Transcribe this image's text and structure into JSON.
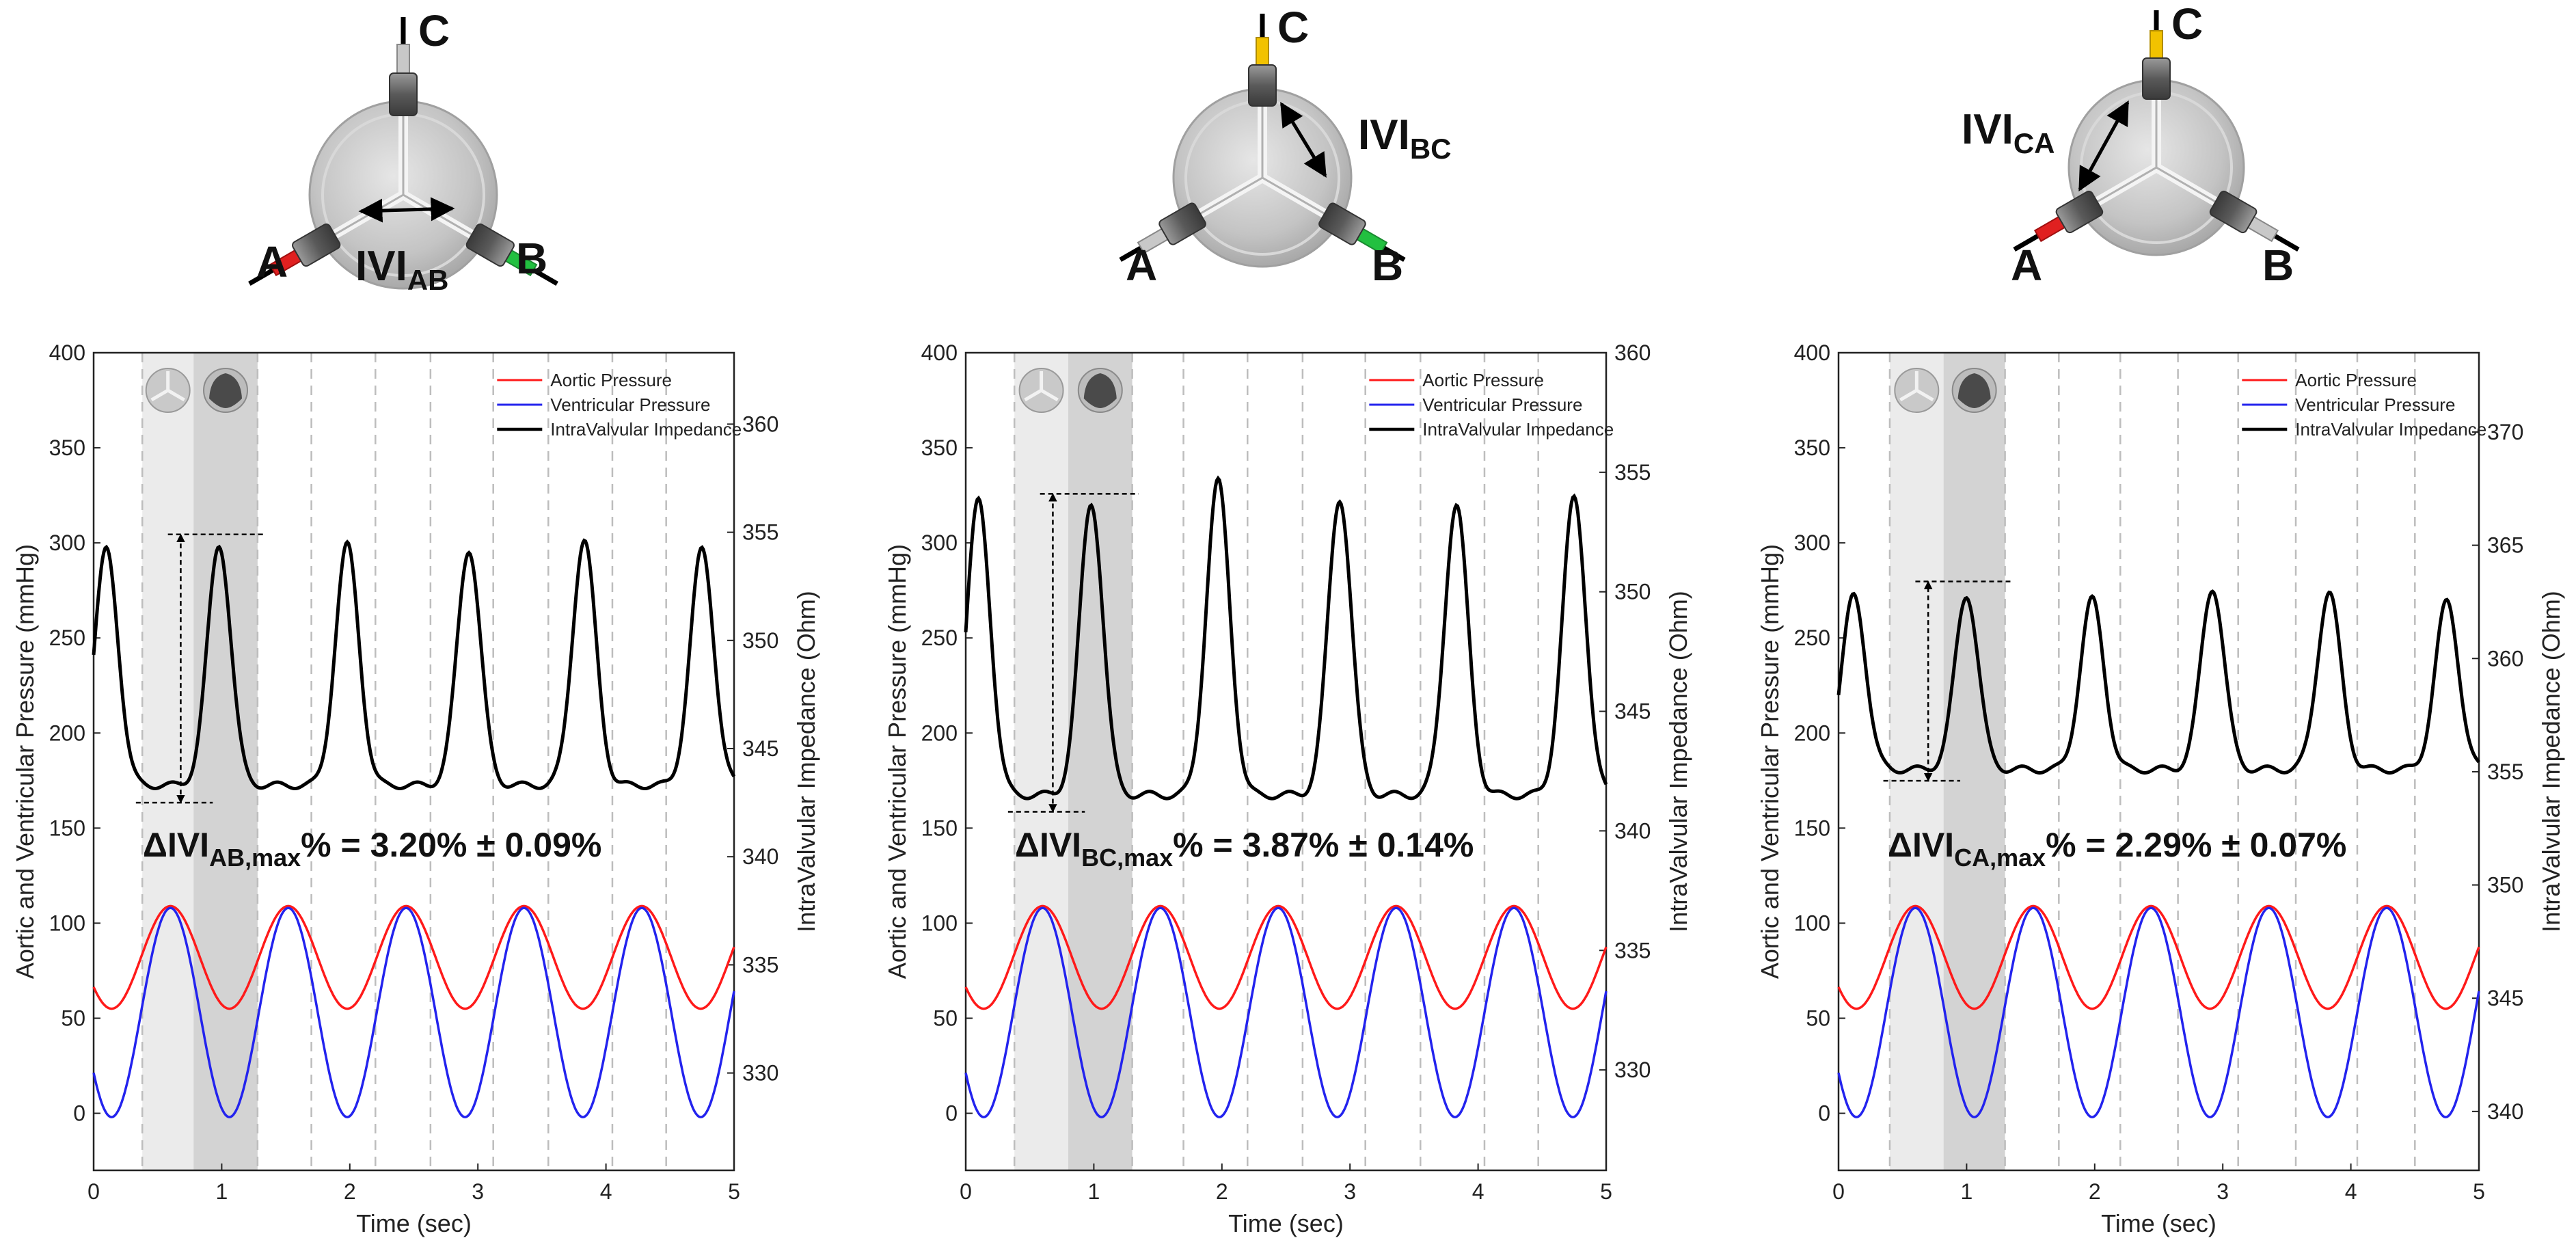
{
  "colors": {
    "aortic": "#ff1a1a",
    "ventricular": "#2323ee",
    "impedance": "#000000",
    "open_band": "#ebebeb",
    "closed_band": "#d3d3d3",
    "beat_dash": "#bdbdbd",
    "lead_a_red": "#e02020",
    "lead_b_green": "#22c040",
    "lead_c_yellow": "#f2c200",
    "lead_grey": "#c8c8c8"
  },
  "valve_labels": {
    "a": "A",
    "b": "B",
    "c": "C"
  },
  "valves": [
    {
      "ivi_main": "IVI",
      "ivi_sub": "AB",
      "active_leads": [
        "A",
        "B"
      ]
    },
    {
      "ivi_main": "IVI",
      "ivi_sub": "BC",
      "active_leads": [
        "B",
        "C"
      ]
    },
    {
      "ivi_main": "IVI",
      "ivi_sub": "CA",
      "active_leads": [
        "C",
        "A"
      ]
    }
  ],
  "chart_data": [
    {
      "type": "line",
      "xlabel": "Time (sec)",
      "ylabel_left": "Aortic and Ventricular Pressure (mmHg)",
      "ylabel_right": "IntraValvular Impedance (Ohm)",
      "xlim": [
        0,
        5
      ],
      "ylim_left": [
        -30,
        400
      ],
      "ylim_right": [
        325.5,
        363.3
      ],
      "x_ticks": [
        "0",
        "1",
        "2",
        "3",
        "4",
        "5"
      ],
      "y_ticks_left": [
        "0",
        "50",
        "100",
        "150",
        "200",
        "250",
        "300",
        "350",
        "400"
      ],
      "y_ticks_right": [
        "330",
        "335",
        "340",
        "345",
        "350",
        "355",
        "360"
      ],
      "legend": [
        "Aortic Pressure",
        "Ventricular Pressure",
        "IntraValvular Impedance"
      ],
      "metric": {
        "prefix": "ΔIVI",
        "sub": "AB,max",
        "suffix": "% = 3.20% ± 0.09%"
      },
      "impedance_base": 343.3,
      "impedance_peaks": [
        {
          "t": 0.1,
          "v": 354.2
        },
        {
          "t": 0.98,
          "v": 354.4
        },
        {
          "t": 1.98,
          "v": 354.4
        },
        {
          "t": 2.93,
          "v": 354.2
        },
        {
          "t": 3.83,
          "v": 354.6
        },
        {
          "t": 4.75,
          "v": 354.2
        }
      ],
      "delta_baseline": 342.5,
      "delta_peak": 354.9,
      "aortic_mean": 82,
      "aortic_amp": 27,
      "ventricular_mean": 53,
      "ventricular_amp": 55,
      "beat_period": 0.92,
      "beat_phase": 0.6,
      "open_band": [
        0.38,
        0.78
      ],
      "closed_band": [
        0.78,
        1.28
      ],
      "beat_lines": [
        0.38,
        1.28,
        1.7,
        2.2,
        2.63,
        3.12,
        3.55,
        4.05,
        4.47
      ]
    },
    {
      "type": "line",
      "xlabel": "Time (sec)",
      "ylabel_left": "Aortic and Ventricular Pressure (mmHg)",
      "ylabel_right": "IntraValvular Impedance (Ohm)",
      "xlim": [
        0,
        5
      ],
      "ylim_left": [
        -30,
        400
      ],
      "ylim_right": [
        325.8,
        360
      ],
      "x_ticks": [
        "0",
        "1",
        "2",
        "3",
        "4",
        "5"
      ],
      "y_ticks_left": [
        "0",
        "50",
        "100",
        "150",
        "200",
        "250",
        "300",
        "350",
        "400"
      ],
      "y_ticks_right": [
        "330",
        "335",
        "340",
        "345",
        "350",
        "355",
        "360"
      ],
      "legend": [
        "Aortic Pressure",
        "Ventricular Pressure",
        "IntraValvular Impedance"
      ],
      "metric": {
        "prefix": "ΔIVI",
        "sub": "BC,max",
        "suffix": "% = 3.87% ± 0.14%"
      },
      "impedance_base": 341.5,
      "impedance_peaks": [
        {
          "t": 0.1,
          "v": 353.8
        },
        {
          "t": 0.98,
          "v": 353.7
        },
        {
          "t": 1.97,
          "v": 354.6
        },
        {
          "t": 2.92,
          "v": 353.9
        },
        {
          "t": 3.83,
          "v": 353.6
        },
        {
          "t": 4.75,
          "v": 353.9
        }
      ],
      "delta_baseline": 340.8,
      "delta_peak": 354.1,
      "aortic_mean": 82,
      "aortic_amp": 27,
      "ventricular_mean": 53,
      "ventricular_amp": 55,
      "beat_period": 0.92,
      "beat_phase": 0.6,
      "open_band": [
        0.38,
        0.8
      ],
      "closed_band": [
        0.8,
        1.3
      ],
      "beat_lines": [
        0.38,
        1.3,
        1.7,
        2.2,
        2.63,
        3.12,
        3.55,
        4.05,
        4.47
      ]
    },
    {
      "type": "line",
      "xlabel": "Time (sec)",
      "ylabel_left": "Aortic and Ventricular Pressure (mmHg)",
      "ylabel_right": "IntraValvular Impedance (Ohm)",
      "xlim": [
        0,
        5
      ],
      "ylim_left": [
        -30,
        400
      ],
      "ylim_right": [
        337.4,
        373.5
      ],
      "x_ticks": [
        "0",
        "1",
        "2",
        "3",
        "4",
        "5"
      ],
      "y_ticks_left": [
        "0",
        "50",
        "100",
        "150",
        "200",
        "250",
        "300",
        "350",
        "400"
      ],
      "y_ticks_right": [
        "340",
        "345",
        "350",
        "355",
        "360",
        "365",
        "370"
      ],
      "legend": [
        "Aortic Pressure",
        "Ventricular Pressure",
        "IntraValvular Impedance"
      ],
      "metric": {
        "prefix": "ΔIVI",
        "sub": "CA,max",
        "suffix": "% = 2.29% ± 0.07%"
      },
      "impedance_base": 355.1,
      "impedance_peaks": [
        {
          "t": 0.12,
          "v": 362.8
        },
        {
          "t": 1.0,
          "v": 362.8
        },
        {
          "t": 1.98,
          "v": 362.6
        },
        {
          "t": 2.92,
          "v": 363.1
        },
        {
          "t": 3.83,
          "v": 362.9
        },
        {
          "t": 4.75,
          "v": 362.5
        }
      ],
      "delta_baseline": 354.6,
      "delta_peak": 363.4,
      "aortic_mean": 82,
      "aortic_amp": 27,
      "ventricular_mean": 53,
      "ventricular_amp": 55,
      "beat_period": 0.92,
      "beat_phase": 0.6,
      "open_band": [
        0.4,
        0.82
      ],
      "closed_band": [
        0.82,
        1.3
      ],
      "beat_lines": [
        0.4,
        1.3,
        1.72,
        2.2,
        2.65,
        3.12,
        3.57,
        4.05,
        4.5
      ]
    }
  ]
}
